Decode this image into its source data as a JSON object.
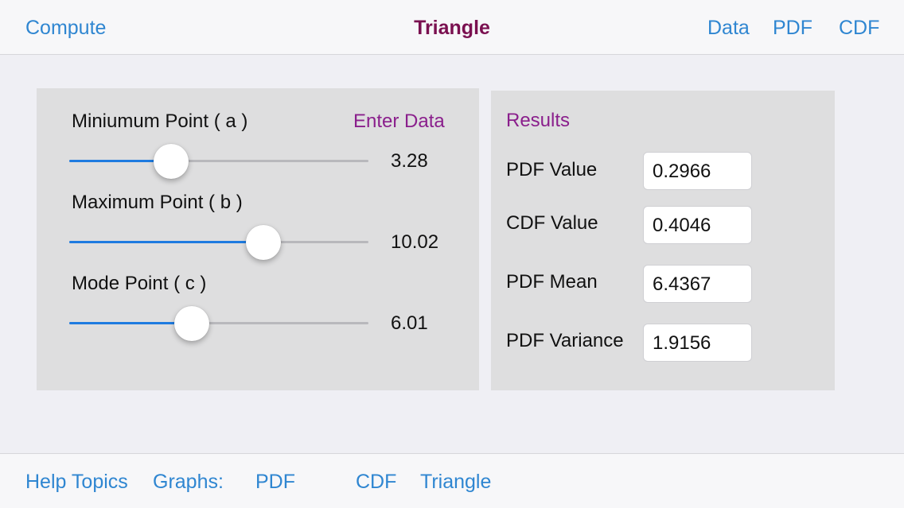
{
  "nav": {
    "left": "Compute",
    "title": "Triangle",
    "right": [
      "Data",
      "PDF",
      "CDF"
    ]
  },
  "inputs": {
    "enter_data": "Enter Data",
    "sliders": [
      {
        "label": "Miniumum Point ( a )",
        "value": "3.28",
        "position": 0.34
      },
      {
        "label": "Maximum Point ( b )",
        "value": "10.02",
        "position": 0.65
      },
      {
        "label": "Mode Point ( c )",
        "value": "6.01",
        "position": 0.41
      }
    ]
  },
  "results": {
    "title": "Results",
    "rows": [
      {
        "label": "PDF Value",
        "value": "0.2966"
      },
      {
        "label": "CDF Value",
        "value": "0.4046"
      },
      {
        "label": "PDF Mean",
        "value": "6.4367"
      },
      {
        "label": "PDF Variance",
        "value": "1.9156"
      }
    ]
  },
  "toolbar": {
    "help": "Help Topics",
    "graphs_label": "Graphs:",
    "pdf": "PDF",
    "cdf": "CDF",
    "triangle": "Triangle"
  },
  "colors": {
    "accent": "#2f86d1",
    "title": "#7a1050",
    "purple": "#8a1f8c",
    "slider_fill": "#1e7be0",
    "panel": "#dededf"
  }
}
